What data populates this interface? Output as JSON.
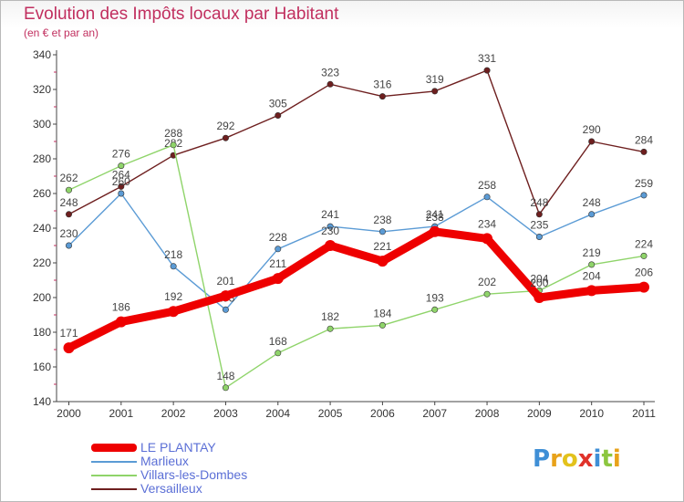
{
  "chart_data": {
    "type": "line",
    "title": "Evolution des Impôts locaux par Habitant",
    "subtitle": "(en € et par an)",
    "xlabel": "",
    "ylabel": "",
    "ylim": [
      140,
      340
    ],
    "yticks": [
      140,
      160,
      180,
      200,
      220,
      240,
      260,
      280,
      300,
      320,
      340
    ],
    "categories": [
      "2000",
      "2001",
      "2002",
      "2003",
      "2004",
      "2005",
      "2006",
      "2007",
      "2008",
      "2009",
      "2010",
      "2011"
    ],
    "grid": false,
    "legend_position": "bottom-left",
    "series": [
      {
        "name": "Versailleux",
        "color": "#6e1f1f",
        "values": [
          248,
          264,
          282,
          292,
          305,
          323,
          316,
          319,
          331,
          248,
          290,
          284
        ],
        "labels": [
          "248",
          "264",
          "282",
          "292",
          "305",
          "323",
          "316",
          "319",
          "331",
          "248",
          "290",
          "284"
        ]
      },
      {
        "name": "Marlieux",
        "color": "#5b9bd5",
        "values": [
          230,
          260,
          218,
          193,
          228,
          241,
          238,
          241,
          258,
          235,
          248,
          259
        ],
        "labels": [
          "230",
          "260",
          "218",
          "193",
          "228",
          "241",
          "238",
          "241",
          "258",
          "235",
          "248",
          "259"
        ]
      },
      {
        "name": "Villars-les-Dombes",
        "color": "#8fd46a",
        "values": [
          262,
          276,
          288,
          148,
          168,
          182,
          184,
          193,
          202,
          204,
          219,
          224
        ],
        "labels": [
          "262",
          "276",
          "288",
          "148",
          "168",
          "182",
          "184",
          "193",
          "202",
          "204",
          "219",
          "224"
        ]
      },
      {
        "name": "LE PLANTAY",
        "color": "#ee0000",
        "values": [
          171,
          186,
          192,
          201,
          211,
          230,
          221,
          238,
          234,
          200,
          204,
          206
        ],
        "labels": [
          "171",
          "186",
          "192",
          "201",
          "211",
          "230",
          "221",
          "238",
          "234",
          "200",
          "204",
          "206"
        ]
      }
    ]
  },
  "legend": [
    {
      "label": "LE PLANTAY",
      "color": "#ee0000",
      "thick": true
    },
    {
      "label": "Marlieux",
      "color": "#5b9bd5",
      "thick": false
    },
    {
      "label": "Villars-les-Dombes",
      "color": "#8fd46a",
      "thick": false
    },
    {
      "label": "Versailleux",
      "color": "#6e1f1f",
      "thick": false
    }
  ],
  "logo": {
    "letters": [
      "P",
      "r",
      "o",
      "x",
      "i",
      "t",
      "i"
    ],
    "colors": [
      "#3f8fd6",
      "#e8a21a",
      "#e3c21c",
      "#e0322a",
      "#3f8fd6",
      "#8cc63f",
      "#e8a21a"
    ]
  }
}
